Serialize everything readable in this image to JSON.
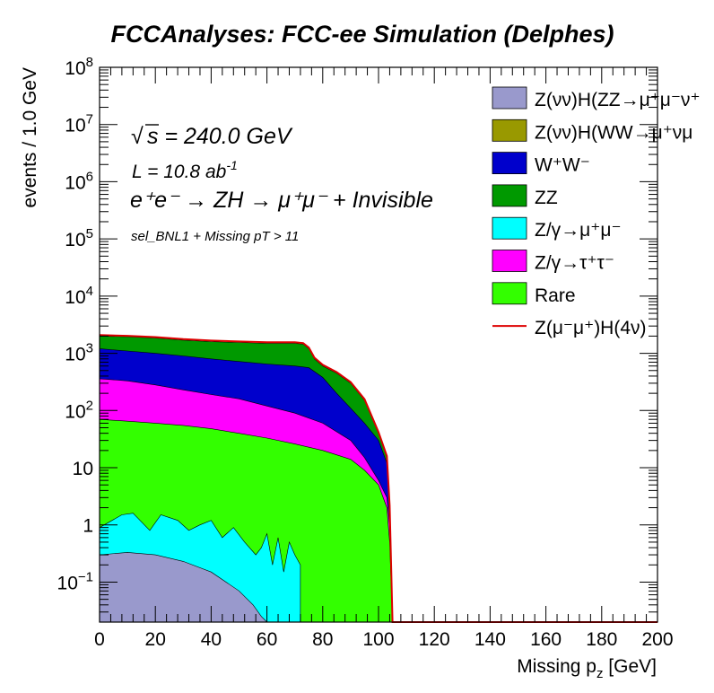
{
  "chart_data": {
    "type": "area",
    "title": "FCCAnalyses: FCC-ee Simulation (Delphes)",
    "xlabel": "Missing p_z [GeV]",
    "xlabel_main": "Missing p",
    "xlabel_sub": "z",
    "xlabel_tail": " [GeV]",
    "ylabel": "events / 1.0 GeV",
    "xlim": [
      0,
      200
    ],
    "ylim": [
      0.02,
      100000000
    ],
    "yscale": "log",
    "stacked": true,
    "grid": false,
    "legend_placement": "top-right",
    "x_tick_labels": [
      "0",
      "20",
      "40",
      "60",
      "80",
      "100",
      "120",
      "140",
      "160",
      "180",
      "200"
    ],
    "y_tick_labels": [
      {
        "value": 0.1,
        "base": "10",
        "exp": "−1"
      },
      {
        "value": 1,
        "base": "1",
        "exp": ""
      },
      {
        "value": 10,
        "base": "10",
        "exp": ""
      },
      {
        "value": 100,
        "base": "10",
        "exp": "2"
      },
      {
        "value": 1000,
        "base": "10",
        "exp": "3"
      },
      {
        "value": 10000,
        "base": "10",
        "exp": "4"
      },
      {
        "value": 100000,
        "base": "10",
        "exp": "5"
      },
      {
        "value": 1000000,
        "base": "10",
        "exp": "6"
      },
      {
        "value": 10000000,
        "base": "10",
        "exp": "7"
      },
      {
        "value": 100000000,
        "base": "10",
        "exp": "8"
      }
    ],
    "annotations": {
      "sqrt_s": "s = 240.0 GeV",
      "lumi": "L = 10.8 ab",
      "lumi_exp": "-1",
      "process": "e⁺e⁻ → ZH → μ⁺μ⁻ + Invisible",
      "selection": "sel_BNL1 + Missing pT > 11"
    },
    "series": [
      {
        "name": "Z(νν̄)H(ZZ→μ⁺μ⁻ν⁺ν⁻)",
        "legend": "Z(νν)H(ZZ→μ⁺μ⁻ν⁺",
        "color": "#9999cc",
        "points": [
          [
            0,
            0.3
          ],
          [
            10,
            0.33
          ],
          [
            20,
            0.3
          ],
          [
            30,
            0.23
          ],
          [
            40,
            0.15
          ],
          [
            50,
            0.07
          ],
          [
            55,
            0.04
          ],
          [
            58,
            0.025
          ],
          [
            60,
            0.02
          ]
        ]
      },
      {
        "name": "Z(νν̄)H(WW→μ⁺νμ⁻ν)",
        "legend": "Z(νν)H(WW→μ⁺νμ",
        "color": "#999900",
        "points": [
          [
            0,
            0.01
          ],
          [
            100,
            0.01
          ]
        ]
      },
      {
        "name": "Z/γ→μ⁺μ⁻",
        "legend": "Z/γ→μ⁺μ⁻",
        "color": "#00ffff",
        "points": [
          [
            0,
            0.9
          ],
          [
            8,
            1.5
          ],
          [
            12,
            1.6
          ],
          [
            18,
            0.8
          ],
          [
            22,
            1.5
          ],
          [
            28,
            1.2
          ],
          [
            32,
            0.8
          ],
          [
            36,
            1.0
          ],
          [
            40,
            1.2
          ],
          [
            44,
            0.6
          ],
          [
            48,
            0.9
          ],
          [
            52,
            0.5
          ],
          [
            56,
            0.3
          ],
          [
            58,
            0.4
          ],
          [
            60,
            0.7
          ],
          [
            62,
            0.2
          ],
          [
            64,
            0.6
          ],
          [
            66,
            0.15
          ],
          [
            68,
            0.5
          ],
          [
            70,
            0.3
          ],
          [
            72,
            0.2
          ]
        ]
      },
      {
        "name": "Rare",
        "legend": "Rare",
        "color": "#33ff00",
        "points": [
          [
            0,
            70
          ],
          [
            10,
            65
          ],
          [
            20,
            60
          ],
          [
            30,
            55
          ],
          [
            40,
            48
          ],
          [
            50,
            40
          ],
          [
            60,
            33
          ],
          [
            70,
            26
          ],
          [
            80,
            20
          ],
          [
            90,
            14
          ],
          [
            95,
            9
          ],
          [
            100,
            5
          ],
          [
            103,
            2
          ],
          [
            104,
            0.5
          ],
          [
            105,
            0.02
          ]
        ]
      },
      {
        "name": "Z/γ→τ⁺τ⁻",
        "legend": "Z/γ→τ⁺τ⁻",
        "color": "#ff00ff",
        "points": [
          [
            0,
            360
          ],
          [
            10,
            330
          ],
          [
            20,
            280
          ],
          [
            30,
            230
          ],
          [
            40,
            190
          ],
          [
            50,
            160
          ],
          [
            60,
            120
          ],
          [
            70,
            90
          ],
          [
            80,
            60
          ],
          [
            90,
            30
          ],
          [
            95,
            15
          ],
          [
            100,
            6
          ],
          [
            103,
            3
          ],
          [
            104,
            1
          ],
          [
            105,
            0.02
          ]
        ]
      },
      {
        "name": "W⁺W⁻",
        "legend": "W⁺W⁻",
        "color": "#0000cc",
        "points": [
          [
            0,
            1200
          ],
          [
            10,
            1100
          ],
          [
            20,
            1000
          ],
          [
            30,
            900
          ],
          [
            40,
            800
          ],
          [
            50,
            720
          ],
          [
            60,
            650
          ],
          [
            70,
            600
          ],
          [
            75,
            560
          ],
          [
            80,
            380
          ],
          [
            85,
            200
          ],
          [
            90,
            110
          ],
          [
            95,
            60
          ],
          [
            100,
            30
          ],
          [
            103,
            12
          ],
          [
            104,
            2
          ],
          [
            105,
            0.02
          ]
        ]
      },
      {
        "name": "ZZ",
        "legend": "ZZ",
        "color": "#009900",
        "points": [
          [
            0,
            2000
          ],
          [
            10,
            1950
          ],
          [
            20,
            1850
          ],
          [
            30,
            1700
          ],
          [
            40,
            1600
          ],
          [
            50,
            1550
          ],
          [
            60,
            1500
          ],
          [
            70,
            1500
          ],
          [
            73,
            1450
          ],
          [
            75,
            1200
          ],
          [
            77,
            800
          ],
          [
            80,
            600
          ],
          [
            85,
            450
          ],
          [
            90,
            300
          ],
          [
            95,
            150
          ],
          [
            100,
            40
          ],
          [
            103,
            15
          ],
          [
            104,
            2
          ],
          [
            105,
            0.02
          ]
        ]
      },
      {
        "name": "Z(μ⁻μ⁺)H(4ν)",
        "legend": "Z(μ⁻μ⁺)H(4ν)",
        "color": "#dd0000",
        "style": "line",
        "points": [
          [
            0,
            2080
          ],
          [
            10,
            2020
          ],
          [
            20,
            1920
          ],
          [
            30,
            1770
          ],
          [
            40,
            1670
          ],
          [
            50,
            1610
          ],
          [
            60,
            1560
          ],
          [
            70,
            1560
          ],
          [
            73,
            1510
          ],
          [
            75,
            1260
          ],
          [
            77,
            840
          ],
          [
            80,
            630
          ],
          [
            85,
            470
          ],
          [
            90,
            315
          ],
          [
            95,
            158
          ],
          [
            100,
            42
          ],
          [
            103,
            16
          ],
          [
            104,
            2.2
          ],
          [
            105,
            0.02
          ],
          [
            200,
            0.02
          ]
        ]
      }
    ]
  }
}
